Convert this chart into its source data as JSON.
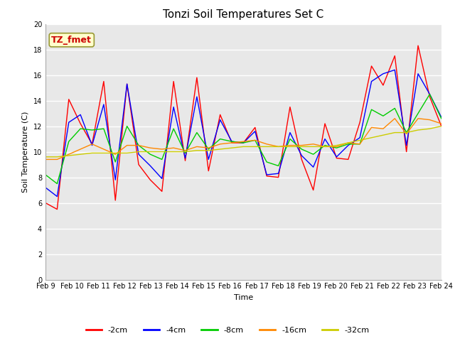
{
  "title": "Tonzi Soil Temperatures Set C",
  "xlabel": "Time",
  "ylabel": "Soil Temperature (C)",
  "annotation": "TZ_fmet",
  "ylim": [
    0,
    20
  ],
  "xtick_labels": [
    "Feb 9",
    "Feb 10",
    "Feb 11",
    "Feb 12",
    "Feb 13",
    "Feb 14",
    "Feb 15",
    "Feb 16",
    "Feb 17",
    "Feb 18",
    "Feb 19",
    "Feb 20",
    "Feb 21",
    "Feb 22",
    "Feb 23",
    "Feb 24"
  ],
  "fig_facecolor": "#ffffff",
  "plot_facecolor": "#e8e8e8",
  "series_colors": [
    "#ff0000",
    "#0000ff",
    "#00cc00",
    "#ff8800",
    "#cccc00"
  ],
  "series_labels": [
    "-2cm",
    "-4cm",
    "-8cm",
    "-16cm",
    "-32cm"
  ],
  "linewidth": 1.0,
  "title_fontsize": 11,
  "axis_label_fontsize": 8,
  "tick_fontsize": 7,
  "legend_fontsize": 8,
  "annotation_fontsize": 9,
  "series": {
    "neg2cm": [
      6.0,
      5.5,
      14.1,
      12.2,
      10.6,
      15.5,
      6.2,
      15.3,
      9.0,
      7.8,
      6.9,
      15.5,
      9.3,
      15.8,
      8.5,
      12.9,
      10.7,
      10.7,
      11.9,
      8.1,
      8.0,
      13.5,
      9.4,
      7.0,
      12.2,
      9.5,
      9.4,
      12.3,
      16.7,
      15.2,
      17.5,
      10.0,
      18.3,
      14.3,
      12.0
    ],
    "neg4cm": [
      7.2,
      6.5,
      12.3,
      12.9,
      10.5,
      13.7,
      7.8,
      15.3,
      9.8,
      8.9,
      7.9,
      13.5,
      9.5,
      14.3,
      9.4,
      12.5,
      10.8,
      10.7,
      11.6,
      8.2,
      8.3,
      11.5,
      9.7,
      8.8,
      11.0,
      9.6,
      10.5,
      11.1,
      15.5,
      16.1,
      16.4,
      10.5,
      16.1,
      14.5,
      12.7
    ],
    "neg8cm": [
      8.2,
      7.5,
      10.8,
      11.8,
      11.7,
      11.8,
      9.2,
      12.0,
      10.5,
      9.8,
      9.4,
      11.8,
      9.9,
      11.5,
      10.2,
      11.0,
      10.8,
      10.7,
      10.9,
      9.2,
      8.9,
      11.0,
      10.2,
      9.8,
      10.5,
      10.3,
      10.6,
      10.6,
      13.3,
      12.8,
      13.4,
      11.5,
      13.0,
      14.5,
      12.6
    ],
    "neg16cm": [
      9.4,
      9.4,
      9.8,
      10.2,
      10.6,
      10.2,
      9.8,
      10.5,
      10.5,
      10.3,
      10.2,
      10.3,
      10.1,
      10.4,
      10.3,
      10.6,
      10.7,
      10.8,
      10.9,
      10.6,
      10.4,
      10.5,
      10.5,
      10.6,
      10.4,
      10.4,
      10.7,
      10.6,
      11.9,
      11.8,
      12.6,
      11.4,
      12.6,
      12.5,
      12.2
    ],
    "neg32cm": [
      9.6,
      9.6,
      9.7,
      9.8,
      9.9,
      9.9,
      9.9,
      9.9,
      10.0,
      10.0,
      10.0,
      10.0,
      10.0,
      10.1,
      10.1,
      10.2,
      10.3,
      10.4,
      10.4,
      10.4,
      10.4,
      10.4,
      10.4,
      10.4,
      10.4,
      10.5,
      10.7,
      10.9,
      11.1,
      11.3,
      11.5,
      11.5,
      11.7,
      11.8,
      12.0
    ]
  }
}
